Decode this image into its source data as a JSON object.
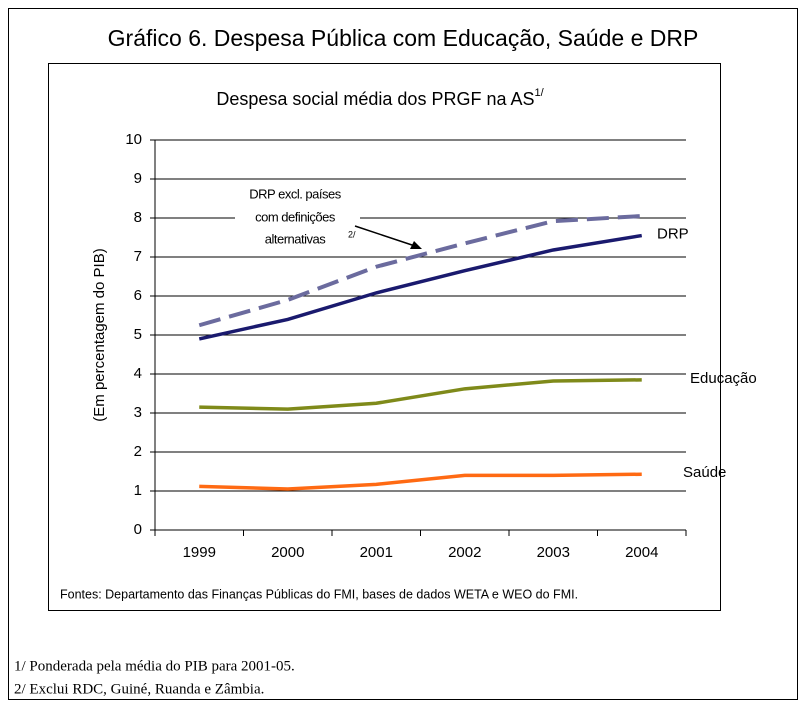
{
  "chart_data": {
    "type": "line",
    "title": "Gráfico 6. Despesa Pública com Educação, Saúde e DRP",
    "subtitle": "Despesa social média dos PRGF na AS",
    "subtitle_note": "1/",
    "y_label": "(Em percentagem do PIB)",
    "categories": [
      "1999",
      "2000",
      "2001",
      "2002",
      "2003",
      "2004"
    ],
    "ylim": [
      0,
      10
    ],
    "yticks": [
      0,
      1,
      2,
      3,
      4,
      5,
      6,
      7,
      8,
      9,
      10
    ],
    "grid": true,
    "series": [
      {
        "name": "DRP",
        "color": "#1a1a6e",
        "values": [
          4.9,
          5.4,
          6.08,
          6.65,
          7.18,
          7.55
        ]
      },
      {
        "color": "#6b6b9e",
        "dashed": true,
        "values": [
          5.25,
          5.9,
          6.75,
          7.35,
          7.92,
          8.05
        ]
      },
      {
        "name": "Educação",
        "color": "#7f8a1a",
        "values": [
          3.15,
          3.1,
          3.25,
          3.62,
          3.82,
          3.85
        ]
      },
      {
        "name": "Saúde",
        "color": "#ff6a13",
        "values": [
          1.12,
          1.05,
          1.17,
          1.4,
          1.4,
          1.43
        ]
      }
    ],
    "annotation": {
      "lines": [
        "DRP excl. países",
        "com definições",
        "alternativas"
      ],
      "note": "2/"
    },
    "source": "Fontes: Departamento das Finanças Públicas do FMI, bases de dados WETA e WEO do FMI.",
    "footnotes": [
      "1/ Ponderada pela média do PIB para 2001-05.",
      "2/ Exclui RDC, Guiné, Ruanda e Zâmbia."
    ]
  }
}
